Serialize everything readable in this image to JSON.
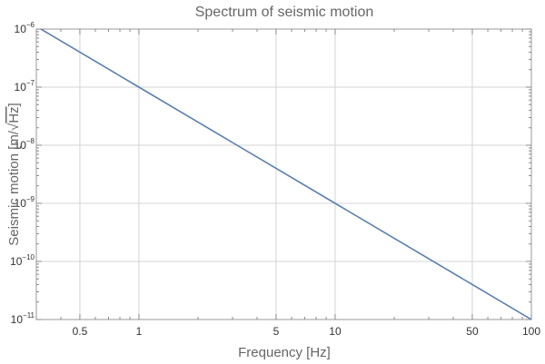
{
  "chart_data": {
    "type": "line",
    "title": "Spectrum of seismic motion",
    "xlabel": "Frequency [Hz]",
    "ylabel_prefix": "Seismic motion [m/",
    "ylabel_sqrt": "Hz",
    "ylabel_suffix": "]",
    "x_scale": "log",
    "y_scale": "log",
    "xlim": [
      0.3,
      100
    ],
    "ylim": [
      1e-11,
      1e-06
    ],
    "grid": true,
    "x_ticks": [
      {
        "value": 0.5,
        "label": "0.5"
      },
      {
        "value": 1,
        "label": "1"
      },
      {
        "value": 5,
        "label": "5"
      },
      {
        "value": 10,
        "label": "10"
      },
      {
        "value": 50,
        "label": "50"
      },
      {
        "value": 100,
        "label": "100"
      }
    ],
    "y_ticks": [
      {
        "value": 1e-11,
        "base": "10",
        "exp": "−11"
      },
      {
        "value": 1e-10,
        "base": "10",
        "exp": "−10"
      },
      {
        "value": 1e-09,
        "base": "10",
        "exp": "−9"
      },
      {
        "value": 1e-08,
        "base": "10",
        "exp": "−8"
      },
      {
        "value": 1e-07,
        "base": "10",
        "exp": "−7"
      },
      {
        "value": 1e-06,
        "base": "10",
        "exp": "−6"
      }
    ],
    "series": [
      {
        "color": "#5a7fb0",
        "x": [
          0.3,
          0.5,
          1,
          5,
          10,
          50,
          100
        ],
        "y": [
          1.111e-06,
          4e-07,
          1e-07,
          4e-09,
          1e-09,
          4e-11,
          1e-11
        ]
      }
    ]
  }
}
